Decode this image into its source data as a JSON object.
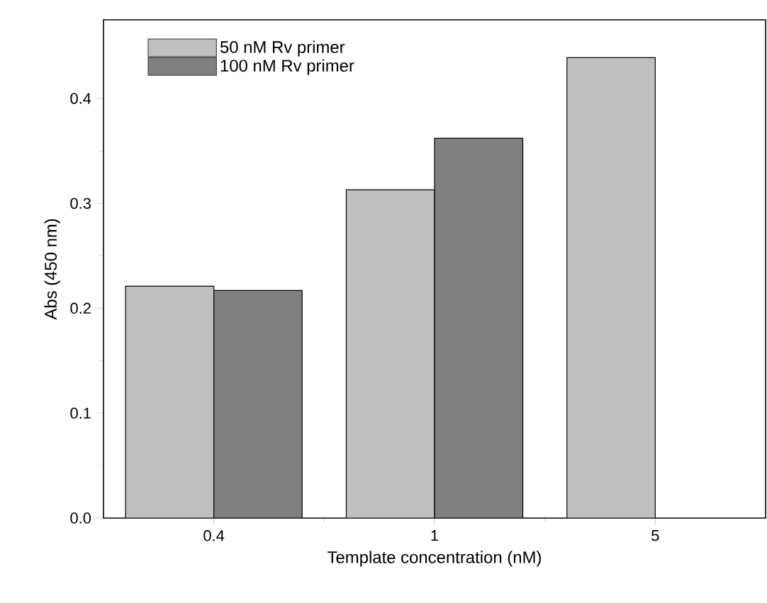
{
  "chart_data": {
    "type": "bar",
    "xlabel": "Template concentration (nM)",
    "ylabel": "Abs (450 nm)",
    "categories": [
      "0.4",
      "1",
      "5"
    ],
    "series": [
      {
        "name": "50 nM Rv primer",
        "color": "#c0c0c0",
        "values": [
          0.221,
          0.313,
          0.439
        ]
      },
      {
        "name": "100 nM Rv primer",
        "color": "#808080",
        "values": [
          0.217,
          0.362,
          null
        ]
      }
    ],
    "ylim": [
      0,
      0.475
    ],
    "yticks": [
      {
        "value": 0,
        "label": "0.0"
      },
      0.1,
      0.2,
      0.3,
      0.4
    ],
    "legend": "top left",
    "grid": false
  }
}
